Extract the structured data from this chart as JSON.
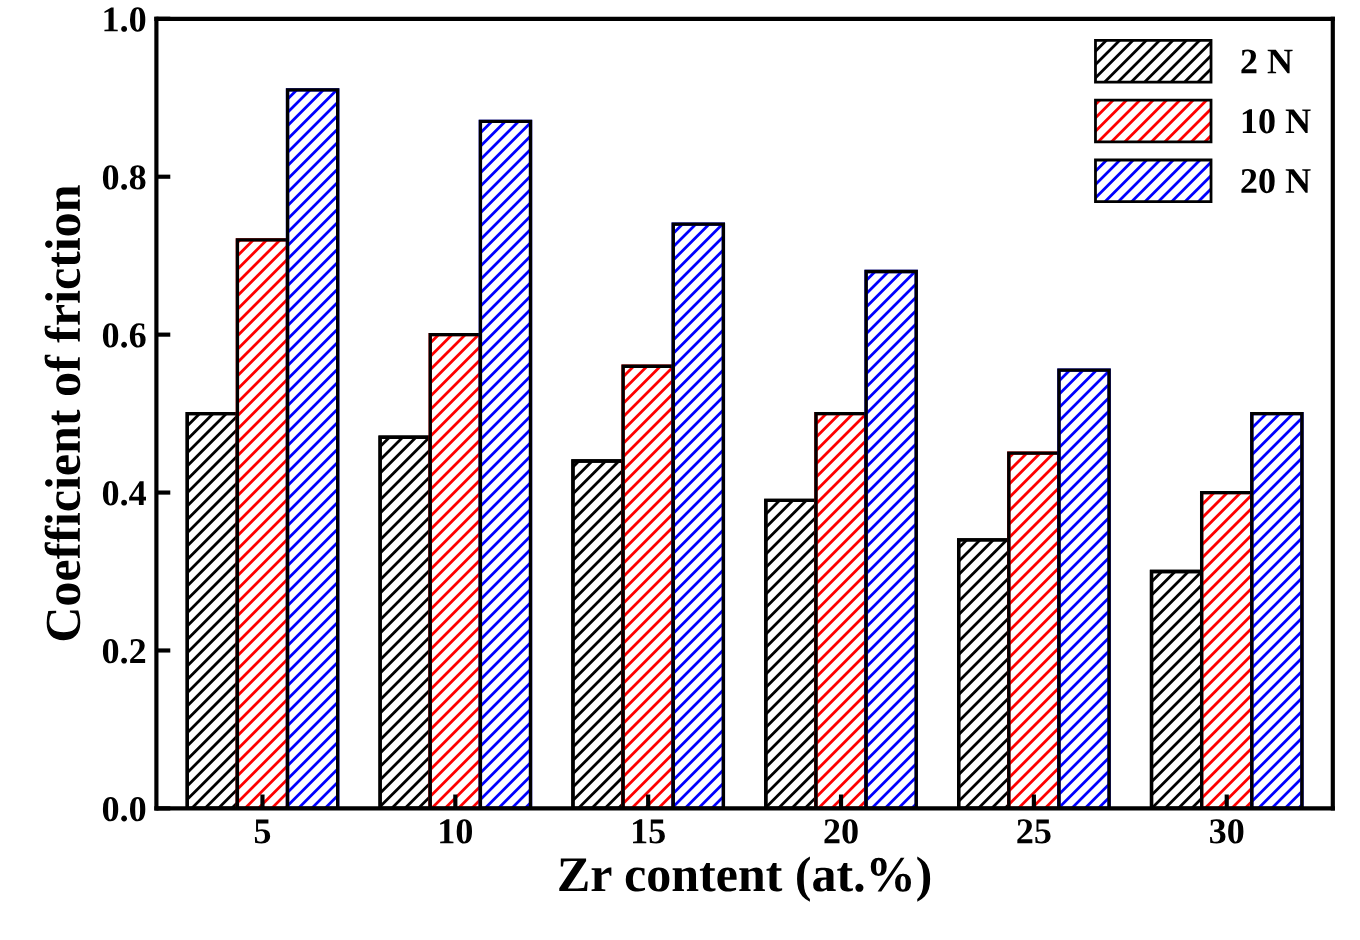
{
  "chart_data": {
    "type": "bar",
    "xlabel": "Zr content (at.%)",
    "ylabel": "Coefficient of friction",
    "categories": [
      "5",
      "10",
      "15",
      "20",
      "25",
      "30"
    ],
    "series": [
      {
        "name": "2 N",
        "color": "#000000",
        "values": [
          0.5,
          0.47,
          0.44,
          0.39,
          0.34,
          0.3
        ]
      },
      {
        "name": "10 N",
        "color": "#ff0000",
        "values": [
          0.72,
          0.6,
          0.56,
          0.5,
          0.45,
          0.4
        ]
      },
      {
        "name": "20 N",
        "color": "#0000ff",
        "values": [
          0.91,
          0.87,
          0.74,
          0.68,
          0.555,
          0.5
        ]
      }
    ],
    "ylim": [
      0,
      1.0
    ],
    "yticks": [
      {
        "value": 0,
        "label": "0.0"
      },
      {
        "value": 0.2,
        "label": "0.2"
      },
      {
        "value": 0.4,
        "label": "0.4"
      },
      {
        "value": 0.6,
        "label": "0.6"
      },
      {
        "value": 0.8,
        "label": "0.8"
      },
      {
        "value": 1.0,
        "label": "1.0"
      }
    ],
    "legend": "top right",
    "grid": false
  }
}
